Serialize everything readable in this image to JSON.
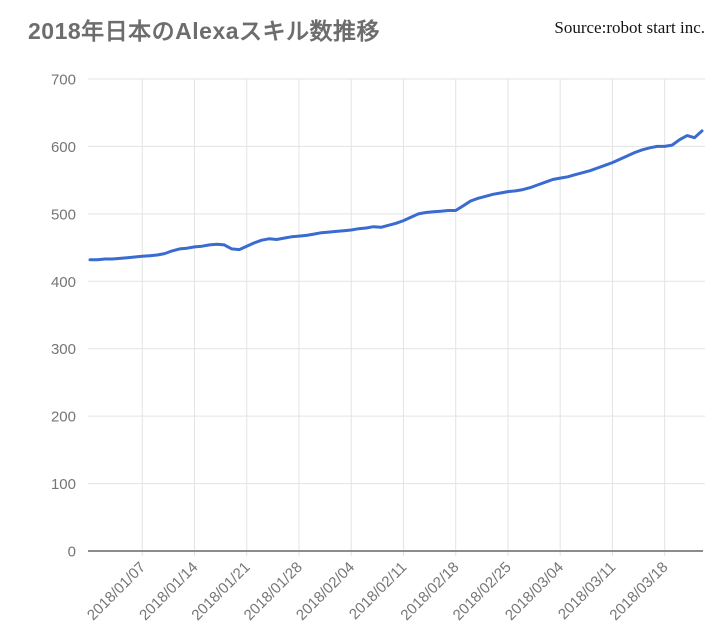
{
  "header": {
    "title": "2018年日本のAlexaスキル数推移",
    "source": "Source:robot start inc."
  },
  "chart_data": {
    "type": "line",
    "title": "2018年日本のAlexaスキル数推移",
    "series_name": "Alexaスキル数",
    "frequency": "daily",
    "start_date": "2017/12/31",
    "end_date": "2018/03/23",
    "ylim": [
      0,
      700
    ],
    "y_ticks": [
      0,
      100,
      200,
      300,
      400,
      500,
      600,
      700
    ],
    "x_tick_labels": [
      "2018/01/07",
      "2018/01/14",
      "2018/01/21",
      "2018/01/28",
      "2018/02/04",
      "2018/02/11",
      "2018/02/18",
      "2018/02/25",
      "2018/03/04",
      "2018/03/11",
      "2018/03/18"
    ],
    "x_tick_indices": [
      7,
      14,
      21,
      28,
      35,
      42,
      49,
      56,
      63,
      70,
      77
    ],
    "grid": true,
    "legend": "none",
    "line_color": "#3a6bd0",
    "values": [
      432,
      432,
      433,
      433,
      434,
      435,
      436,
      437,
      438,
      439,
      441,
      445,
      448,
      449,
      451,
      452,
      454,
      455,
      454,
      448,
      447,
      452,
      457,
      461,
      463,
      462,
      464,
      466,
      467,
      468,
      470,
      472,
      473,
      474,
      475,
      476,
      478,
      479,
      481,
      480,
      483,
      486,
      490,
      495,
      500,
      502,
      503,
      504,
      505,
      505,
      512,
      519,
      523,
      526,
      529,
      531,
      533,
      534,
      536,
      539,
      543,
      547,
      551,
      553,
      555,
      558,
      561,
      564,
      568,
      572,
      576,
      581,
      586,
      591,
      595,
      598,
      600,
      600,
      602,
      610,
      616,
      613,
      623
    ]
  }
}
